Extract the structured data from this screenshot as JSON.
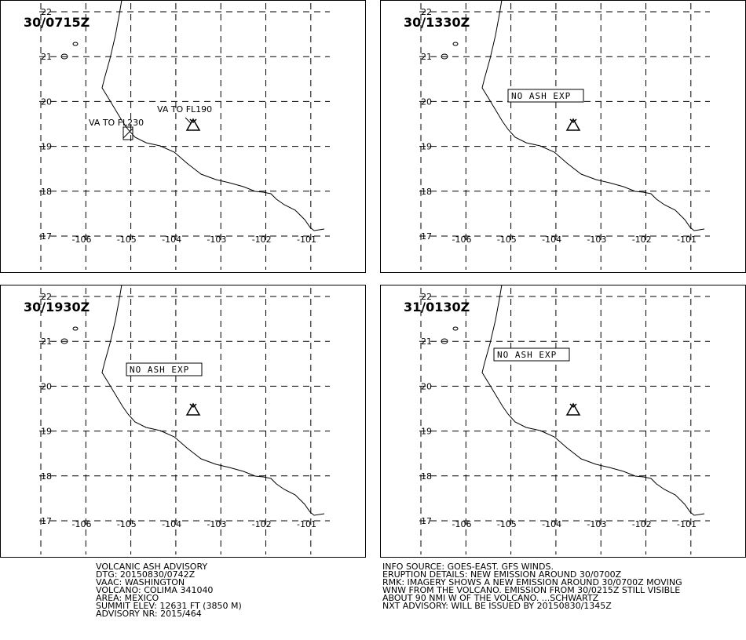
{
  "panels": [
    {
      "time": "30/0715Z",
      "annotations": [
        "VA TO FL190",
        "VA TO FL230"
      ]
    },
    {
      "time": "30/1330Z",
      "annotations": [
        "NO ASH EXP"
      ]
    },
    {
      "time": "30/1930Z",
      "annotations": [
        "NO ASH EXP"
      ]
    },
    {
      "time": "31/0130Z",
      "annotations": [
        "NO ASH EXP"
      ]
    }
  ],
  "latitudes": [
    "22",
    "21",
    "20",
    "19",
    "18",
    "17"
  ],
  "longitudes": [
    "-106",
    "-105",
    "-104",
    "-103",
    "-102",
    "-101"
  ],
  "advisory_left": [
    "VOLCANIC ASH ADVISORY",
    "DTG: 20150830/0742Z",
    "VAAC: WASHINGTON",
    "VOLCANO: COLIMA 341040",
    "AREA: MEXICO",
    "SUMMIT ELEV: 12631 FT (3850 M)",
    "ADVISORY NR: 2015/464"
  ],
  "advisory_right": [
    "INFO SOURCE: GOES-EAST. GFS WINDS.",
    "ERUPTION DETAILS: NEW EMISSION AROUND 30/0700Z",
    "RMK: IMAGERY SHOWS A NEW EMISSION AROUND 30/0700Z MOVING",
    "WNW FROM THE VOLCANO. EMISSION FROM 30/0215Z STILL VISIBLE",
    "ABOUT 90 NMI W OF THE VOLCANO. ...SCHWARTZ",
    "NXT ADVISORY: WILL BE ISSUED BY 20150830/1345Z"
  ]
}
